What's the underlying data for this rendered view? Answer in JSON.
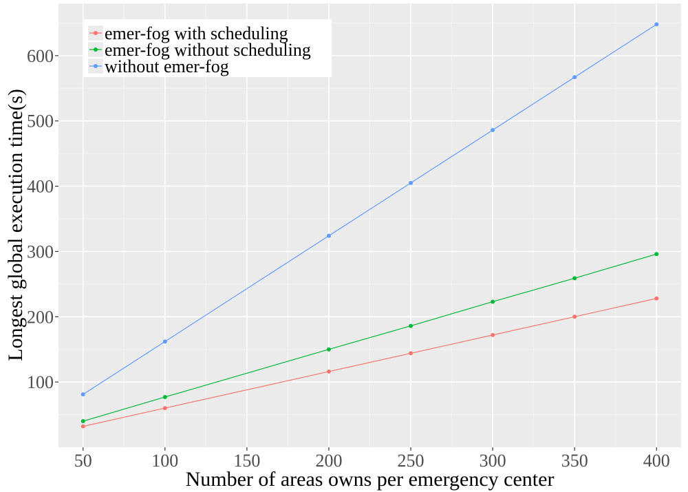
{
  "chart_data": {
    "type": "line",
    "xlabel": "Number of areas owns per emergency center",
    "ylabel": "Longest global execution time(s)",
    "x": [
      50,
      100,
      200,
      250,
      300,
      350,
      400
    ],
    "xticks": [
      50,
      100,
      150,
      200,
      250,
      300,
      350,
      400
    ],
    "yticks": [
      100,
      200,
      300,
      400,
      500,
      600
    ],
    "xlim": [
      35,
      415
    ],
    "ylim": [
      0,
      680
    ],
    "grid": true,
    "legend_position": "top-left",
    "series": [
      {
        "name": "emer-fog with scheduling",
        "color": "#F8766D",
        "values": [
          32,
          60,
          116,
          144,
          172,
          200,
          228
        ]
      },
      {
        "name": "emer-fog without scheduling",
        "color": "#00BA38",
        "values": [
          40,
          77,
          150,
          186,
          223,
          259,
          296
        ]
      },
      {
        "name": "without emer-fog",
        "color": "#619CFF",
        "values": [
          81,
          162,
          324,
          405,
          486,
          567,
          648
        ]
      }
    ],
    "colors": {
      "panel": "#EBEBEB",
      "grid_major": "#FFFFFF",
      "grid_minor": "#F5F5F5",
      "tick": "#333333"
    }
  }
}
